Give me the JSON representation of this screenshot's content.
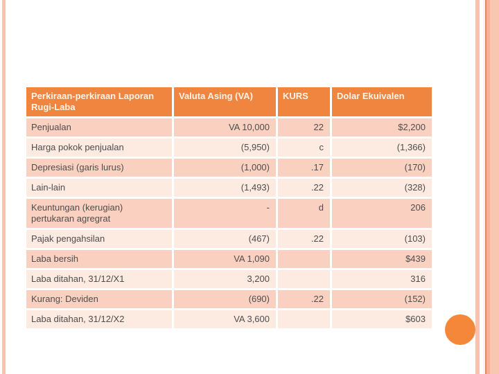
{
  "colors": {
    "header_bg": "#F0853F",
    "header_text": "#FDF3E7",
    "row_odd_bg": "#FAD1C0",
    "row_even_bg": "#FDEAE1",
    "body_text": "#4D4D4D",
    "accent_orange": "#F5873B",
    "stripe_peach": "#F7C3AC",
    "stripe_cream": "#FCF3EC",
    "stripe_dark": "#E08A55",
    "stripe_mid": "#F4B195",
    "stripe_light": "#F9C6B0"
  },
  "table": {
    "columns": [
      {
        "label": "Perkiraan-perkiraan Laporan Rugi-Laba",
        "align": "left"
      },
      {
        "label": "Valuta Asing (VA)",
        "align": "right"
      },
      {
        "label": "KURS",
        "align": "right"
      },
      {
        "label": "Dolar Ekuivalen",
        "align": "right"
      }
    ],
    "rows": [
      [
        "Penjualan",
        "VA 10,000",
        "22",
        "$2,200"
      ],
      [
        "Harga pokok penjualan",
        "(5,950)",
        "c",
        "(1,366)"
      ],
      [
        "Depresiasi (garis lurus)",
        "(1,000)",
        ".17",
        "(170)"
      ],
      [
        "Lain-lain",
        "(1,493)",
        ".22",
        "(328)"
      ],
      [
        "Keuntungan (kerugian) pertukaran agregrat",
        "-",
        "d",
        "206"
      ],
      [
        "Pajak pengahsilan",
        "(467)",
        ".22",
        "(103)"
      ],
      [
        "Laba bersih",
        "VA 1,090",
        "",
        "$439"
      ],
      [
        "Laba ditahan, 31/12/X1",
        "3,200",
        "",
        "316"
      ],
      [
        "Kurang: Deviden",
        "(690)",
        ".22",
        "(152)"
      ],
      [
        "Laba ditahan, 31/12/X2",
        "VA 3,600",
        "",
        "$603"
      ]
    ]
  }
}
